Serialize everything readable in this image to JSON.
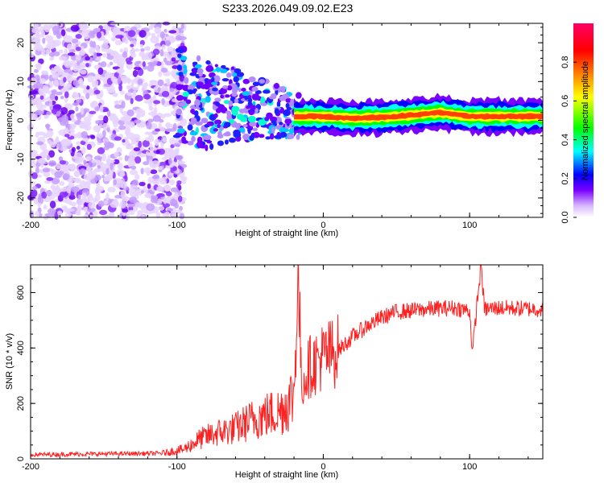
{
  "chart_data": [
    {
      "type": "heatmap",
      "title": "S233.2026.049.09.02.E23",
      "xlabel": "Height of straight line (km)",
      "ylabel": "Frequency (Hz)",
      "xlim": [
        -200,
        150
      ],
      "ylim": [
        -25,
        25
      ],
      "xticks": [
        -200,
        -100,
        0,
        100
      ],
      "yticks": [
        -20,
        -10,
        0,
        10,
        20
      ],
      "colorbar": {
        "label": "Normalized spectral amplitude",
        "range": [
          0.0,
          1.0
        ],
        "ticks": [
          "0.0",
          "0.2",
          "0.4",
          "0.6",
          "0.8"
        ],
        "colormap": [
          "#ffffff",
          "#d8b8ff",
          "#7a00ff",
          "#0000ff",
          "#00ffff",
          "#00ff00",
          "#ffff00",
          "#ff8000",
          "#ff0000",
          "#ff0080"
        ]
      },
      "ridge": {
        "description_points_x": [
          -100,
          -80,
          -60,
          -40,
          -20,
          0,
          20,
          50,
          80,
          100,
          150
        ],
        "frequency_hz": [
          7,
          4,
          4,
          3,
          1,
          1,
          0.5,
          1,
          2,
          1,
          1
        ]
      }
    },
    {
      "type": "line",
      "xlabel": "Height of straight line (km)",
      "ylabel": "SNR (10 * v/v)",
      "xlim": [
        -200,
        150
      ],
      "ylim": [
        0,
        700
      ],
      "xticks": [
        -200,
        -100,
        0,
        100
      ],
      "yticks": [
        0,
        200,
        400,
        600
      ],
      "series": [
        {
          "name": "SNR",
          "color": "#ff2020",
          "x": [
            -200,
            -150,
            -110,
            -95,
            -85,
            -75,
            -60,
            -45,
            -30,
            -20,
            -17,
            -15,
            -10,
            0,
            10,
            20,
            30,
            40,
            50,
            70,
            90,
            100,
            102,
            105,
            108,
            110,
            120,
            150
          ],
          "y": [
            15,
            18,
            20,
            35,
            70,
            90,
            110,
            150,
            170,
            230,
            700,
            260,
            330,
            370,
            390,
            440,
            480,
            510,
            530,
            540,
            545,
            535,
            380,
            560,
            700,
            540,
            545,
            540
          ]
        }
      ]
    }
  ]
}
